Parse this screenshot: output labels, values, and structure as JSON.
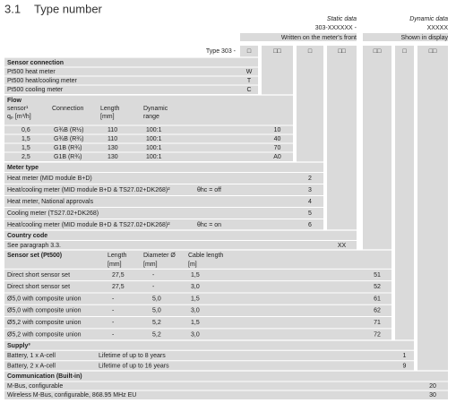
{
  "heading": {
    "number": "3.1",
    "title": "Type number"
  },
  "static_data": {
    "label": "Static data",
    "code": "303-XXXXXX -",
    "note": "Written on the meter's front"
  },
  "dynamic_data": {
    "label": "Dynamic data",
    "code": "XXXXX",
    "note": "Shown in display"
  },
  "type_row": {
    "label": "Type 303 -",
    "boxes": [
      "□",
      "□□",
      "□",
      "□□",
      "□□",
      "□",
      "□□"
    ]
  },
  "sections": [
    {
      "title": "Sensor connection",
      "rows": [
        {
          "cells": [
            "Pt500 heat meter"
          ],
          "code": "W"
        },
        {
          "cells": [
            "Pt500 heat/cooling meter"
          ],
          "code": "T"
        },
        {
          "cells": [
            "Pt500 cooling meter"
          ],
          "code": "C"
        }
      ]
    },
    {
      "title": "Flow",
      "headers": [
        [
          "sensor¹",
          "qₚ [m³/h]"
        ],
        [
          "Connection"
        ],
        [
          "Length",
          "[mm]"
        ],
        [
          "Dynamic",
          "range"
        ]
      ],
      "rows": [
        {
          "cells": [
            "0,6",
            "G¾B (R½)",
            "110",
            "100:1"
          ],
          "code": "10"
        },
        {
          "cells": [
            "1,5",
            "G¾B (R¾)",
            "110",
            "100:1"
          ],
          "code": "40"
        },
        {
          "cells": [
            "1,5",
            "G1B (R¾)",
            "130",
            "100:1"
          ],
          "code": "70"
        },
        {
          "cells": [
            "2,5",
            "G1B (R¾)",
            "130",
            "100:1"
          ],
          "code": "A0"
        }
      ]
    },
    {
      "title": "Meter type",
      "rows": [
        {
          "cells": [
            "Heat meter (MID module B+D)"
          ],
          "code": "2"
        },
        {
          "cells": [
            "Heat/cooling meter (MID module B+D & TS27.02+DK268)²",
            "θhc = off"
          ],
          "code": "3"
        },
        {
          "cells": [
            "Heat meter, National approvals"
          ],
          "code": "4"
        },
        {
          "cells": [
            "Cooling meter (TS27.02+DK268)"
          ],
          "code": "5"
        },
        {
          "cells": [
            "Heat/cooling meter (MID module B+D & TS27.02+DK268)²",
            "θhc = on"
          ],
          "code": "6"
        }
      ]
    },
    {
      "title": "Country code",
      "rows": [
        {
          "cells": [
            "See paragraph 3.3."
          ],
          "code": "XX"
        }
      ]
    },
    {
      "title": "Sensor set (Pt500)",
      "headers": [
        [],
        [
          "Length",
          "[mm]"
        ],
        [
          "Diameter Ø",
          "[mm]"
        ],
        [
          "Cable length",
          "[m]"
        ]
      ],
      "rows": [
        {
          "cells": [
            "Direct short sensor set",
            "27,5",
            "-",
            "1,5"
          ],
          "code": "51"
        },
        {
          "cells": [
            "Direct short sensor set",
            "27,5",
            "-",
            "3,0"
          ],
          "code": "52"
        },
        {
          "cells": [
            "Ø5,0 with composite union",
            "-",
            "5,0",
            "1,5"
          ],
          "code": "61"
        },
        {
          "cells": [
            "Ø5,0 with composite union",
            "-",
            "5,0",
            "3,0"
          ],
          "code": "62"
        },
        {
          "cells": [
            "Ø5,2 with composite union",
            "-",
            "5,2",
            "1,5"
          ],
          "code": "71"
        },
        {
          "cells": [
            "Ø5,2 with composite union",
            "-",
            "5,2",
            "3,0"
          ],
          "code": "72"
        }
      ]
    },
    {
      "title": "Supply³",
      "rows": [
        {
          "cells": [
            "Battery, 1 x A-cell",
            "Lifetime of up to 8 years"
          ],
          "code": "1"
        },
        {
          "cells": [
            "Battery, 2 x A-cell",
            "Lifetime of up to 16 years"
          ],
          "code": "9"
        }
      ]
    },
    {
      "title": "Communication (Built-in)",
      "rows": [
        {
          "cells": [
            "M-Bus, configurable"
          ],
          "code": "20"
        },
        {
          "cells": [
            "Wireless M-Bus, configurable, 868.95 MHz EU"
          ],
          "code": "30"
        }
      ]
    }
  ]
}
